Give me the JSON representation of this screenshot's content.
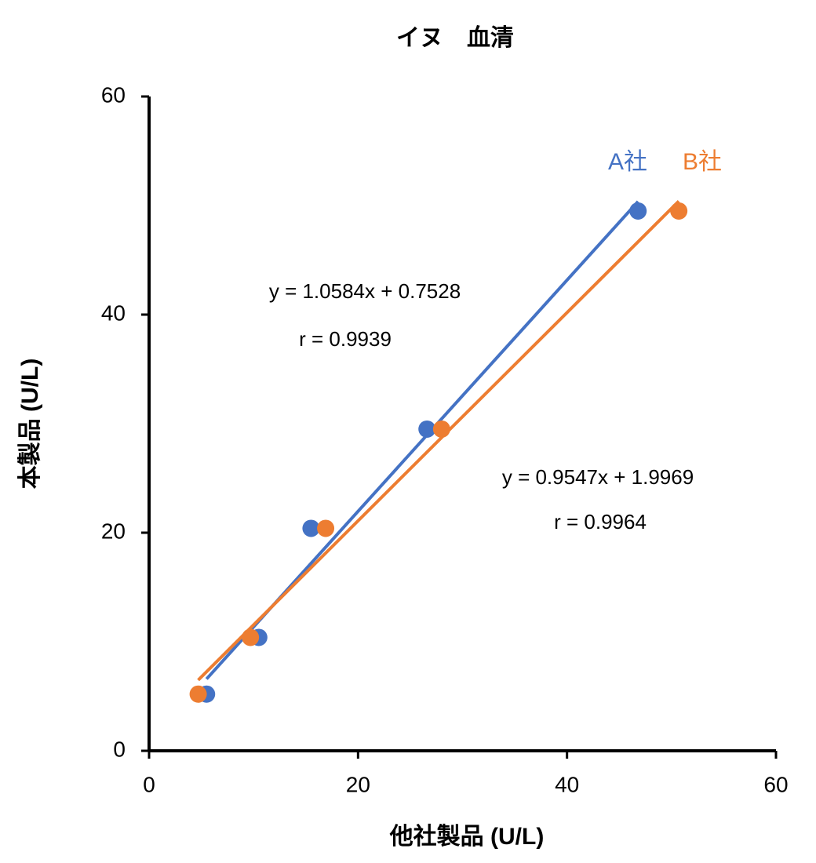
{
  "chart_data": {
    "type": "scatter",
    "title": "イヌ　血清",
    "xlabel": "他社製品 (U/L)",
    "ylabel": "本製品 (U/L)",
    "xlim": [
      0,
      60
    ],
    "xticks": [
      0,
      20,
      40,
      60
    ],
    "ylim": [
      0,
      60
    ],
    "yticks": [
      0,
      20,
      40,
      60
    ],
    "trendline": true,
    "series": [
      {
        "name": "A社",
        "color": "#4472c4",
        "x": [
          5.5,
          10.5,
          15.5,
          26.6,
          46.8
        ],
        "values": [
          5.2,
          10.4,
          20.4,
          29.5,
          49.5
        ]
      },
      {
        "name": "B社",
        "color": "#ed7d31",
        "x": [
          4.7,
          9.7,
          16.9,
          28.0,
          50.7
        ],
        "values": [
          5.2,
          10.4,
          20.4,
          29.5,
          49.5
        ]
      }
    ],
    "annotations": [
      "y = 1.0584x + 0.7528",
      "r = 0.9939",
      "y = 0.9547x + 1.9969",
      "r = 0.9964"
    ]
  }
}
